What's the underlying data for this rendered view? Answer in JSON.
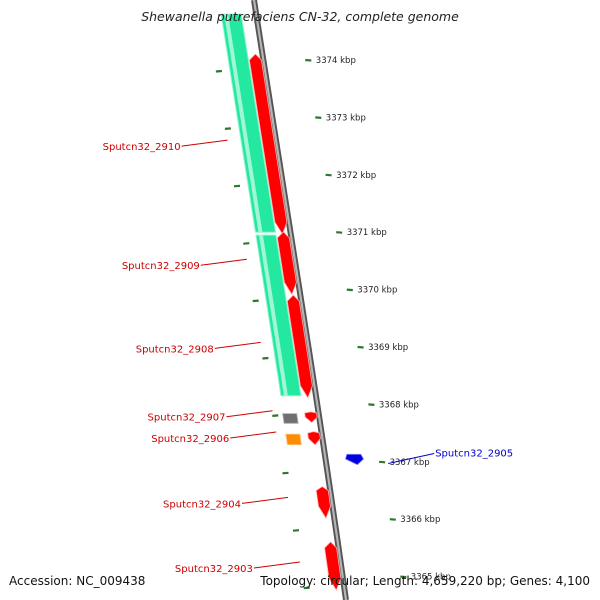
{
  "title": "Shewanella putrefaciens CN-32, complete genome",
  "footer": {
    "accession_label": "Accession:",
    "accession_value": "NC_009438",
    "topology_label": "Topology:",
    "topology_value": "circular",
    "length_label": "Length:",
    "length_value": "4,659,220 bp",
    "genes_label": "Genes:",
    "genes_value": "4,100"
  },
  "colors": {
    "forward_gene": "#ff0000",
    "reverse_gene": "#0000dd",
    "gc_track": "#22e8a0",
    "backbone": "#8a8a8a",
    "tick_dots": "#2a7a2a",
    "label_forward": "#cc0000",
    "label_reverse": "#0000cc",
    "gray_feature": "#707070",
    "orange_feature": "#ff8c00"
  },
  "axis": {
    "ticks": [
      {
        "value": 3374,
        "label": "3374 kbp"
      },
      {
        "value": 3373,
        "label": "3373 kbp"
      },
      {
        "value": 3372,
        "label": "3372 kbp"
      },
      {
        "value": 3371,
        "label": "3371 kbp"
      },
      {
        "value": 3370,
        "label": "3370 kbp"
      },
      {
        "value": 3369,
        "label": "3369 kbp"
      },
      {
        "value": 3368,
        "label": "3368 kbp"
      },
      {
        "value": 3367,
        "label": "3367 kbp"
      },
      {
        "value": 3366,
        "label": "3366 kbp"
      },
      {
        "value": 3365,
        "label": "3365 kbp"
      }
    ]
  },
  "genes": [
    {
      "name": "Sputcn32_2910",
      "strand": "forward",
      "start_kbp": 3371.0,
      "end_kbp": 3374.0
    },
    {
      "name": "Sputcn32_2909",
      "strand": "forward",
      "start_kbp": 3369.95,
      "end_kbp": 3370.9
    },
    {
      "name": "Sputcn32_2908",
      "strand": "forward",
      "start_kbp": 3368.15,
      "end_kbp": 3369.8
    },
    {
      "name": "Sputcn32_2907",
      "strand": "forward",
      "start_kbp": 3367.72,
      "end_kbp": 3367.85
    },
    {
      "name": "Sputcn32_2906",
      "strand": "forward",
      "start_kbp": 3367.33,
      "end_kbp": 3367.5
    },
    {
      "name": "Sputcn32_2905",
      "strand": "reverse",
      "start_kbp": 3366.95,
      "end_kbp": 3367.13
    },
    {
      "name": "Sputcn32_2904",
      "strand": "forward",
      "start_kbp": 3366.05,
      "end_kbp": 3366.5
    },
    {
      "name": "Sputcn32_2903",
      "strand": "forward",
      "start_kbp": 3364.8,
      "end_kbp": 3365.5
    }
  ],
  "gc_blocks": [
    {
      "start_kbp": 3371.0,
      "end_kbp": 3374.8
    },
    {
      "start_kbp": 3368.15,
      "end_kbp": 3370.95
    }
  ],
  "small_features": [
    {
      "type": "gray",
      "start_kbp": 3367.67,
      "end_kbp": 3367.84
    },
    {
      "type": "orange",
      "start_kbp": 3367.3,
      "end_kbp": 3367.48
    }
  ]
}
